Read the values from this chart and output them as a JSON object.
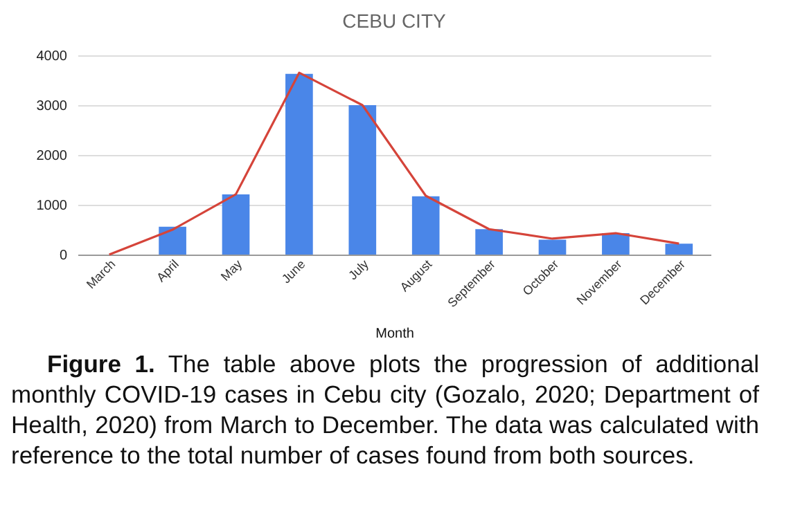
{
  "chart_data": {
    "type": "bar",
    "title": "CEBU CITY",
    "xlabel": "Month",
    "categories": [
      "March",
      "April",
      "May",
      "June",
      "July",
      "August",
      "September",
      "October",
      "November",
      "December"
    ],
    "series": [
      {
        "color": "#4a86e8",
        "values": [
          0,
          560,
          1210,
          3630,
          3000,
          1170,
          510,
          300,
          430,
          220
        ]
      },
      {
        "type": "line",
        "color": "#d5443a",
        "values": [
          0,
          500,
          1210,
          3650,
          3000,
          1180,
          510,
          320,
          430,
          220
        ]
      }
    ],
    "ylim": [
      0,
      4000
    ],
    "yticks": [
      0,
      1000,
      2000,
      3000,
      4000
    ],
    "grid": "y",
    "annotations": [
      "Figure 1. The table above plots the progression of additional monthly COVID-19 cases in Cebu city (Gozalo, 2020; Department of Health, 2020) from March to December. The data was calculated with reference to the total number of cases found from both sources."
    ]
  }
}
